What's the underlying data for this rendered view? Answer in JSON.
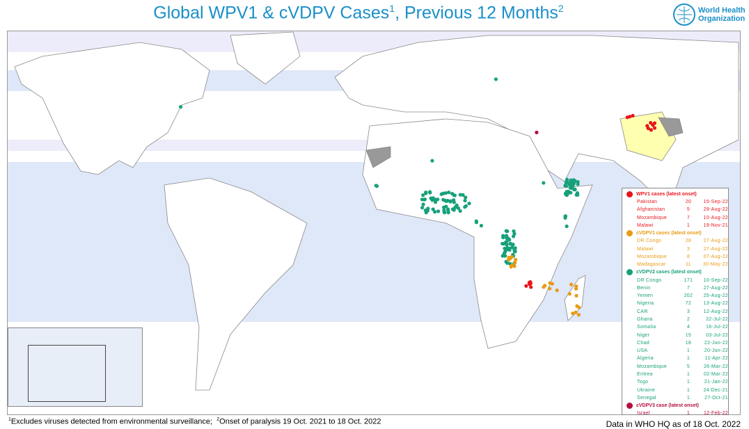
{
  "title": {
    "main": "Global WPV1 & cVDPV Cases",
    "sup1": "1",
    "middle": ", Previous 12 Months",
    "sup2": "2"
  },
  "logo": {
    "line1": "World Health",
    "line2": "Organization",
    "icon": "who-emblem-icon"
  },
  "colors": {
    "wpv1": "#e8141c",
    "cvdpv1": "#e89b12",
    "cvdpv2": "#16a07a",
    "cvdpv3": "#b5103e",
    "endemic": "#ffffb0",
    "disputed": "#999999",
    "ocean_band": "#dfe8f8"
  },
  "legend": {
    "groups": [
      {
        "header": "WPV1 cases (latest onset)",
        "color": "#e8141c",
        "rows": [
          [
            "Pakistan",
            "20",
            "15-Sep-22"
          ],
          [
            "Afghanistan",
            "5",
            "29-Aug-22"
          ],
          [
            "Mozambique",
            "7",
            "10-Aug-22"
          ],
          [
            "Malawi",
            "1",
            "19-Nov-21"
          ]
        ]
      },
      {
        "header": "cVDPV1 cases (latest onset)",
        "color": "#e89b12",
        "rows": [
          [
            "DR Congo",
            "28",
            "27-Aug-22"
          ],
          [
            "Malawi",
            "3",
            "27-Aug-22"
          ],
          [
            "Mozambique",
            "8",
            "07-Aug-22"
          ],
          [
            "Madagascar",
            "11",
            "30-May-22"
          ]
        ]
      },
      {
        "header": "cVDPV2 cases (latest onset)",
        "color": "#16a07a",
        "rows": [
          [
            "DR Congo",
            "171",
            "10-Sep-22"
          ],
          [
            "Benin",
            "7",
            "27-Aug-22"
          ],
          [
            "Yemen",
            "202",
            "25-Aug-22"
          ],
          [
            "Nigeria",
            "72",
            "13-Aug-22"
          ],
          [
            "CAR",
            "3",
            "12-Aug-22"
          ],
          [
            "Ghana",
            "2",
            "22-Jul-22"
          ],
          [
            "Somalia",
            "4",
            "16-Jul-22"
          ],
          [
            "Niger",
            "15",
            "03-Jul-22"
          ],
          [
            "Chad",
            "18",
            "22-Jun-22"
          ],
          [
            "USA",
            "1",
            "20-Jun-22"
          ],
          [
            "Algeria",
            "1",
            "11-Apr-22"
          ],
          [
            "Mozambique",
            "5",
            "26-Mar-22"
          ],
          [
            "Eritrea",
            "1",
            "02-Mar-22"
          ],
          [
            "Togo",
            "1",
            "21-Jan-22"
          ],
          [
            "Ukraine",
            "1",
            "24-Dec-21"
          ],
          [
            "Senegal",
            "1",
            "27-Oct-21"
          ]
        ]
      },
      {
        "header": "cVDPV3 case (latest onset)",
        "color": "#b5103e",
        "rows": [
          [
            "Israel",
            "1",
            "12-Feb-22"
          ]
        ]
      }
    ]
  },
  "footnote": {
    "sup1": "1",
    "text1": "Excludes viruses detected from environmental surveillance;",
    "sup2": "2",
    "text2": "Onset of paralysis 19 Oct. 2021 to 18 Oct. 2022"
  },
  "data_note": "Data in WHO HQ as of 18 Oct. 2022"
}
